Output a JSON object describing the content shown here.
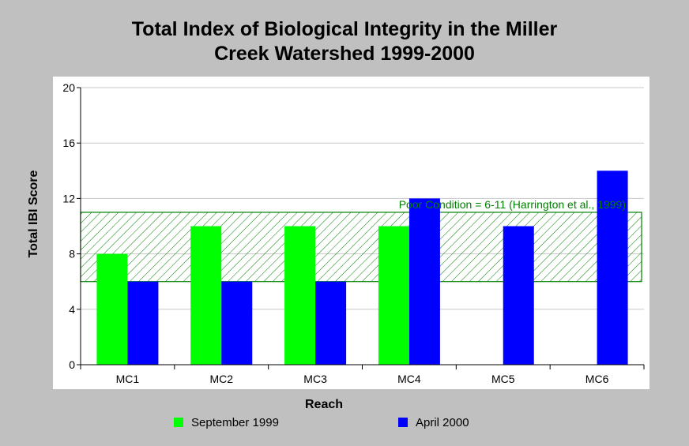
{
  "chart_data": {
    "type": "bar",
    "title": [
      "Total Index of Biological Integrity in the Miller",
      "Creek Watershed 1999-2000"
    ],
    "xlabel": "Reach",
    "ylabel": "Total IBI Score",
    "categories": [
      "MC1",
      "MC2",
      "MC3",
      "MC4",
      "MC5",
      "MC6"
    ],
    "series": [
      {
        "name": "September 1999",
        "color": "#00ff00",
        "values": [
          8,
          10,
          10,
          10,
          null,
          null
        ]
      },
      {
        "name": "April 2000",
        "color": "#0000ff",
        "values": [
          6,
          6,
          6,
          12,
          10,
          14
        ]
      }
    ],
    "ylim": [
      0,
      20
    ],
    "yticks": [
      0,
      4,
      8,
      12,
      16,
      20
    ],
    "grid": true,
    "legend_position": "bottom",
    "annotation": {
      "text": "Poor Condition = 6-11 (Harrington et al., 1999)",
      "range": [
        6,
        11
      ],
      "color": "#008000"
    }
  }
}
